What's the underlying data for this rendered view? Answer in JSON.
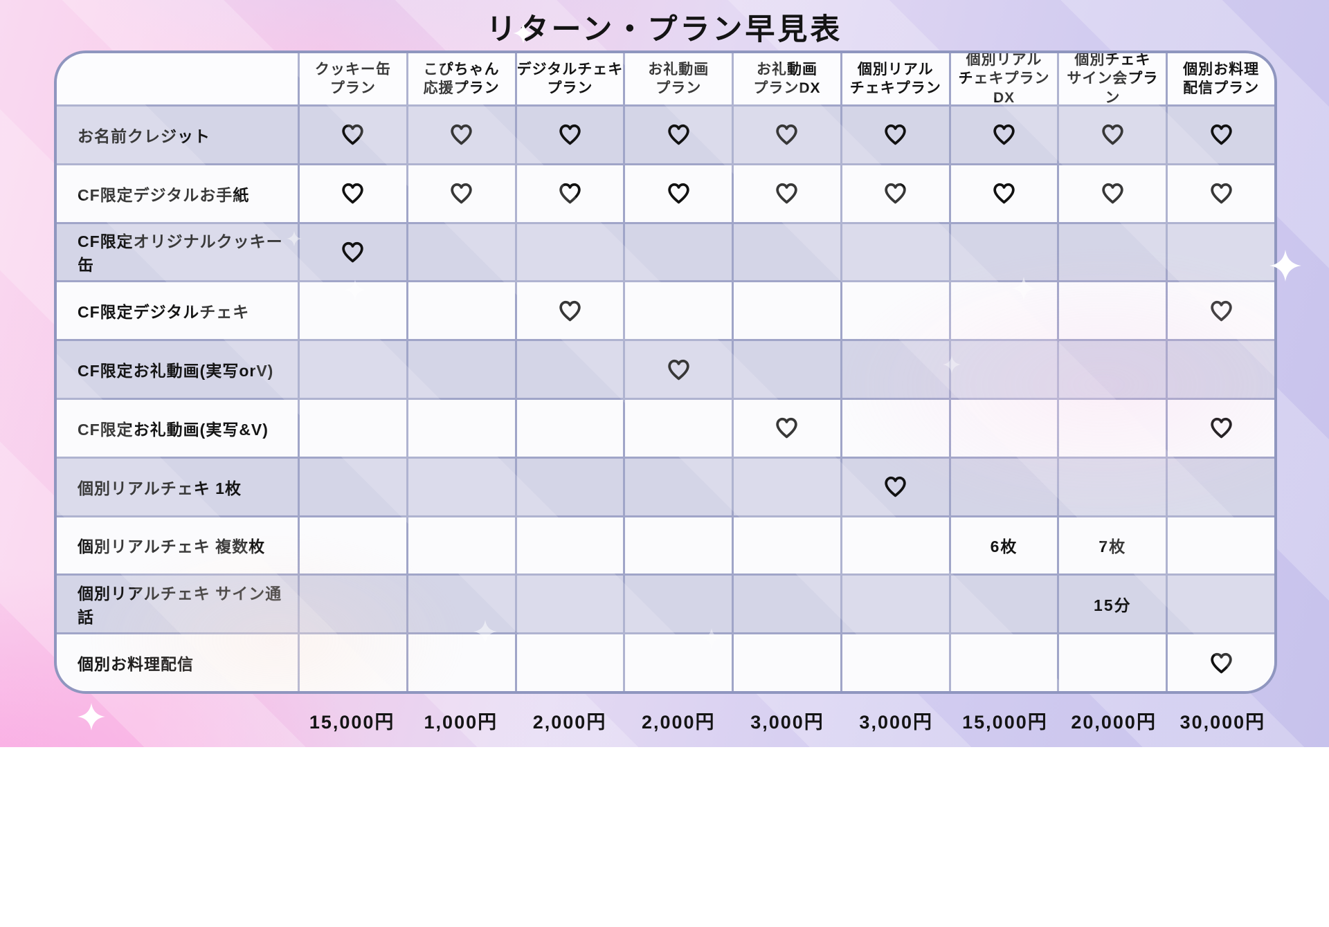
{
  "title": "リターン・プラン早見表",
  "plans": [
    {
      "name": "クッキー缶\nプラン",
      "price": "15,000円"
    },
    {
      "name": "こぴちゃん\n応援プラン",
      "price": "1,000円"
    },
    {
      "name": "デジタルチェキ\nプラン",
      "price": "2,000円"
    },
    {
      "name": "お礼動画\nプラン",
      "price": "2,000円"
    },
    {
      "name": "お礼動画\nプランDX",
      "price": "3,000円"
    },
    {
      "name": "個別リアル\nチェキプラン",
      "price": "3,000円"
    },
    {
      "name": "個別リアル\nチェキプランDX",
      "price": "15,000円"
    },
    {
      "name": "個別チェキ\nサイン会プラン",
      "price": "20,000円"
    },
    {
      "name": "個別お料理\n配信プラン",
      "price": "30,000円"
    }
  ],
  "returns": [
    {
      "label": "お名前クレジット",
      "cells": [
        "♡",
        "♡",
        "♡",
        "♡",
        "♡",
        "♡",
        "♡",
        "♡",
        "♡"
      ]
    },
    {
      "label": "CF限定デジタルお手紙",
      "cells": [
        "♡",
        "♡",
        "♡",
        "♡",
        "♡",
        "♡",
        "♡",
        "♡",
        "♡"
      ]
    },
    {
      "label": "CF限定オリジナルクッキー缶",
      "cells": [
        "♡",
        "",
        "",
        "",
        "",
        "",
        "",
        "",
        ""
      ]
    },
    {
      "label": "CF限定デジタルチェキ",
      "cells": [
        "",
        "",
        "♡",
        "",
        "",
        "",
        "",
        "",
        "♡"
      ]
    },
    {
      "label": "CF限定お礼動画(実写orV)",
      "cells": [
        "",
        "",
        "",
        "♡",
        "",
        "",
        "",
        "",
        ""
      ]
    },
    {
      "label": "CF限定お礼動画(実写&V)",
      "cells": [
        "",
        "",
        "",
        "",
        "♡",
        "",
        "",
        "",
        "♡"
      ]
    },
    {
      "label": "個別リアルチェキ 1枚",
      "cells": [
        "",
        "",
        "",
        "",
        "",
        "♡",
        "",
        "",
        ""
      ]
    },
    {
      "label": "個別リアルチェキ 複数枚",
      "cells": [
        "",
        "",
        "",
        "",
        "",
        "",
        "6枚",
        "7枚",
        ""
      ]
    },
    {
      "label": "個別リアルチェキ サイン通話",
      "cells": [
        "",
        "",
        "",
        "",
        "",
        "",
        "",
        "15分",
        ""
      ]
    },
    {
      "label": "個別お料理配信",
      "cells": [
        "",
        "",
        "",
        "",
        "",
        "",
        "",
        "",
        "♡"
      ]
    }
  ],
  "icons": {
    "heart": "outlined-heart (included)",
    "sparkle": "four-point-star"
  },
  "colors": {
    "text": "#141414",
    "grid_line": "#a0a5c8",
    "outer_border": "#8f96bf",
    "row_lavender": "#d4d5e7",
    "row_white": "#fbfbfd",
    "bg_pink": "#f8c7e9",
    "bg_lavender": "#c7c2ec"
  },
  "chart_data": {
    "type": "table",
    "title": "リターン・プラン早見表",
    "columns": [
      "クッキー缶プラン",
      "こぴちゃん応援プラン",
      "デジタルチェキプラン",
      "お礼動画プラン",
      "お礼動画プランDX",
      "個別リアルチェキプラン",
      "個別リアルチェキプランDX",
      "個別チェキサイン会プラン",
      "個別お料理配信プラン"
    ],
    "column_prices": [
      "15,000円",
      "1,000円",
      "2,000円",
      "2,000円",
      "3,000円",
      "3,000円",
      "15,000円",
      "20,000円",
      "30,000円"
    ],
    "row_labels": [
      "お名前クレジット",
      "CF限定デジタルお手紙",
      "CF限定オリジナルクッキー缶",
      "CF限定デジタルチェキ",
      "CF限定お礼動画(実写orV)",
      "CF限定お礼動画(実写&V)",
      "個別リアルチェキ 1枚",
      "個別リアルチェキ 複数枚",
      "個別リアルチェキ サイン通話",
      "個別お料理配信"
    ],
    "cells": [
      [
        "♡",
        "♡",
        "♡",
        "♡",
        "♡",
        "♡",
        "♡",
        "♡",
        "♡"
      ],
      [
        "♡",
        "♡",
        "♡",
        "♡",
        "♡",
        "♡",
        "♡",
        "♡",
        "♡"
      ],
      [
        "♡",
        "",
        "",
        "",
        "",
        "",
        "",
        "",
        ""
      ],
      [
        "",
        "",
        "♡",
        "",
        "",
        "",
        "",
        "",
        "♡"
      ],
      [
        "",
        "",
        "",
        "♡",
        "",
        "",
        "",
        "",
        ""
      ],
      [
        "",
        "",
        "",
        "",
        "♡",
        "",
        "",
        "",
        "♡"
      ],
      [
        "",
        "",
        "",
        "",
        "",
        "♡",
        "",
        "",
        ""
      ],
      [
        "",
        "",
        "",
        "",
        "",
        "",
        "6枚",
        "7枚",
        ""
      ],
      [
        "",
        "",
        "",
        "",
        "",
        "",
        "",
        "15分",
        ""
      ],
      [
        "",
        "",
        "",
        "",
        "",
        "",
        "",
        "",
        "♡"
      ]
    ]
  }
}
